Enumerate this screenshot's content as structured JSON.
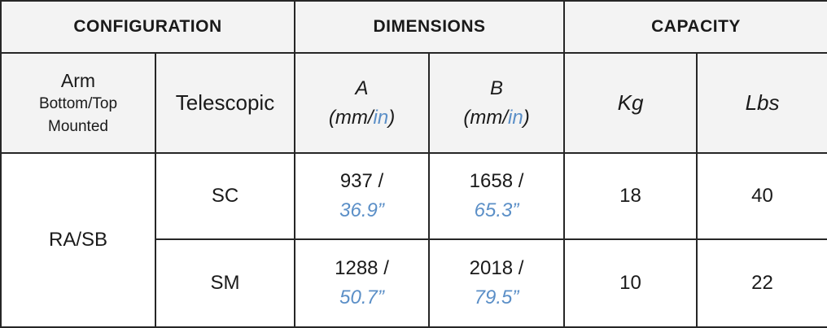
{
  "headers": {
    "configuration": "CONFIGURATION",
    "dimensions": "DIMENSIONS",
    "capacity": "CAPACITY"
  },
  "subheaders": {
    "arm_line1": "Arm",
    "arm_line2": "Bottom/Top",
    "arm_line3": "Mounted",
    "telescopic": "Telescopic",
    "a_letter": "A",
    "b_letter": "B",
    "unit_open": "(mm/",
    "unit_in": "in",
    "unit_close": ")",
    "kg": "Kg",
    "lbs": "Lbs"
  },
  "rows": [
    {
      "arm": "RA/SB",
      "telescopic": "SC",
      "a_mm": "937 /",
      "a_in": "36.9”",
      "b_mm": "1658 /",
      "b_in": "65.3”",
      "kg": "18",
      "lbs": "40"
    },
    {
      "telescopic": "SM",
      "a_mm": "1288 /",
      "a_in": "50.7”",
      "b_mm": "2018 /",
      "b_in": "79.5”",
      "kg": "10",
      "lbs": "22"
    }
  ],
  "colors": {
    "accent_blue": "#5b8fc7",
    "header_bg": "#f3f3f3",
    "border": "#262626"
  }
}
